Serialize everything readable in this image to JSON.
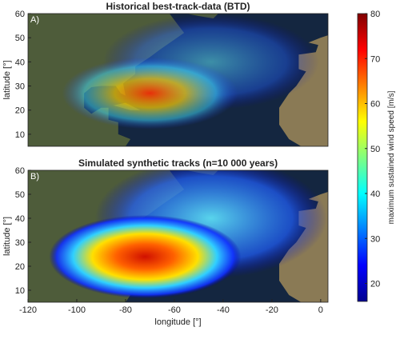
{
  "chart_data": [
    {
      "type": "map",
      "title": "Historical best-track-data (BTD)",
      "panel_label": "A)",
      "ylabel": "latitude [°]",
      "xlim": [
        -120,
        3
      ],
      "ylim": [
        5,
        60
      ],
      "yticks": [
        10,
        20,
        30,
        40,
        50,
        60
      ]
    },
    {
      "type": "map",
      "title": "Simulated synthetic tracks (n=10 000 years)",
      "panel_label": "B)",
      "ylabel": "latitude [°]",
      "xlabel": "longitude [°]",
      "xlim": [
        -120,
        3
      ],
      "ylim": [
        5,
        60
      ],
      "xticks": [
        -120,
        -100,
        -80,
        -60,
        -40,
        -20,
        0
      ],
      "yticks": [
        10,
        20,
        30,
        40,
        50,
        60
      ]
    }
  ],
  "colorbar": {
    "label": "maximum sustained wind speed [m/s]",
    "lim": [
      16,
      80
    ],
    "ticks": [
      20,
      30,
      40,
      50,
      60,
      70,
      80
    ],
    "colormap": "jet"
  }
}
